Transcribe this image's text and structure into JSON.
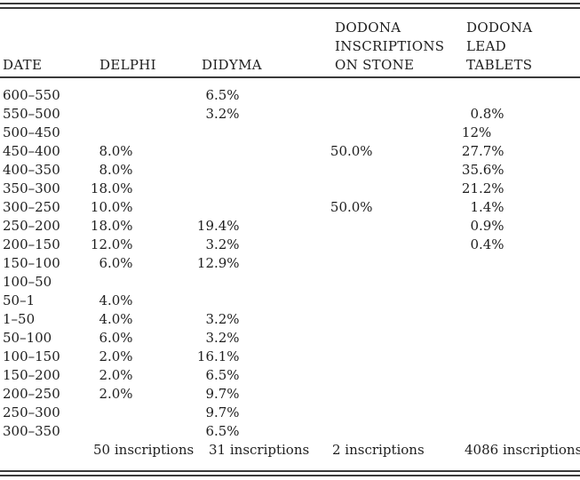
{
  "colors": {
    "text": "#1e1e1e",
    "rule": "#3a3a3a",
    "background": "#ffffff"
  },
  "table": {
    "columns": [
      {
        "key": "date",
        "label": "DATE"
      },
      {
        "key": "delphi",
        "label": "DELPHI"
      },
      {
        "key": "didyma",
        "label": "DIDYMA"
      },
      {
        "key": "stone",
        "label": "DODONA\nINSCRIPTIONS\nON STONE"
      },
      {
        "key": "lead",
        "label": "DODONA\nLEAD\nTABLETS"
      }
    ],
    "rows": [
      {
        "date": "600–550",
        "delphi": "",
        "didyma": "6.5%",
        "stone": "",
        "lead": ""
      },
      {
        "date": "550–500",
        "delphi": "",
        "didyma": "3.2%",
        "stone": "",
        "lead": "0.8%"
      },
      {
        "date": "500–450",
        "delphi": "",
        "didyma": "",
        "stone": "",
        "lead": "12%"
      },
      {
        "date": "450–400",
        "delphi": "8.0%",
        "didyma": "",
        "stone": "50.0%",
        "lead": "27.7%"
      },
      {
        "date": "400–350",
        "delphi": "8.0%",
        "didyma": "",
        "stone": "",
        "lead": "35.6%"
      },
      {
        "date": "350–300",
        "delphi": "18.0%",
        "didyma": "",
        "stone": "",
        "lead": "21.2%"
      },
      {
        "date": "300–250",
        "delphi": "10.0%",
        "didyma": "",
        "stone": "50.0%",
        "lead": "1.4%"
      },
      {
        "date": "250–200",
        "delphi": "18.0%",
        "didyma": "19.4%",
        "stone": "",
        "lead": "0.9%"
      },
      {
        "date": "200–150",
        "delphi": "12.0%",
        "didyma": "3.2%",
        "stone": "",
        "lead": "0.4%"
      },
      {
        "date": "150–100",
        "delphi": "6.0%",
        "didyma": "12.9%",
        "stone": "",
        "lead": ""
      },
      {
        "date": "100–50",
        "delphi": "",
        "didyma": "",
        "stone": "",
        "lead": ""
      },
      {
        "date": "50–1",
        "delphi": "4.0%",
        "didyma": "",
        "stone": "",
        "lead": ""
      },
      {
        "date": "1–50",
        "delphi": "4.0%",
        "didyma": "3.2%",
        "stone": "",
        "lead": ""
      },
      {
        "date": "50–100",
        "delphi": "6.0%",
        "didyma": "3.2%",
        "stone": "",
        "lead": ""
      },
      {
        "date": "100–150",
        "delphi": "2.0%",
        "didyma": "16.1%",
        "stone": "",
        "lead": ""
      },
      {
        "date": "150–200",
        "delphi": "2.0%",
        "didyma": "6.5%",
        "stone": "",
        "lead": ""
      },
      {
        "date": "200–250",
        "delphi": "2.0%",
        "didyma": "9.7%",
        "stone": "",
        "lead": ""
      },
      {
        "date": "250–300",
        "delphi": "",
        "didyma": "9.7%",
        "stone": "",
        "lead": ""
      },
      {
        "date": "300–350",
        "delphi": "",
        "didyma": "6.5%",
        "stone": "",
        "lead": ""
      }
    ],
    "totals": {
      "date": "",
      "delphi": "50 inscriptions",
      "didyma": "31 inscriptions",
      "stone": "2 inscriptions",
      "lead": "4086 inscriptions"
    }
  }
}
